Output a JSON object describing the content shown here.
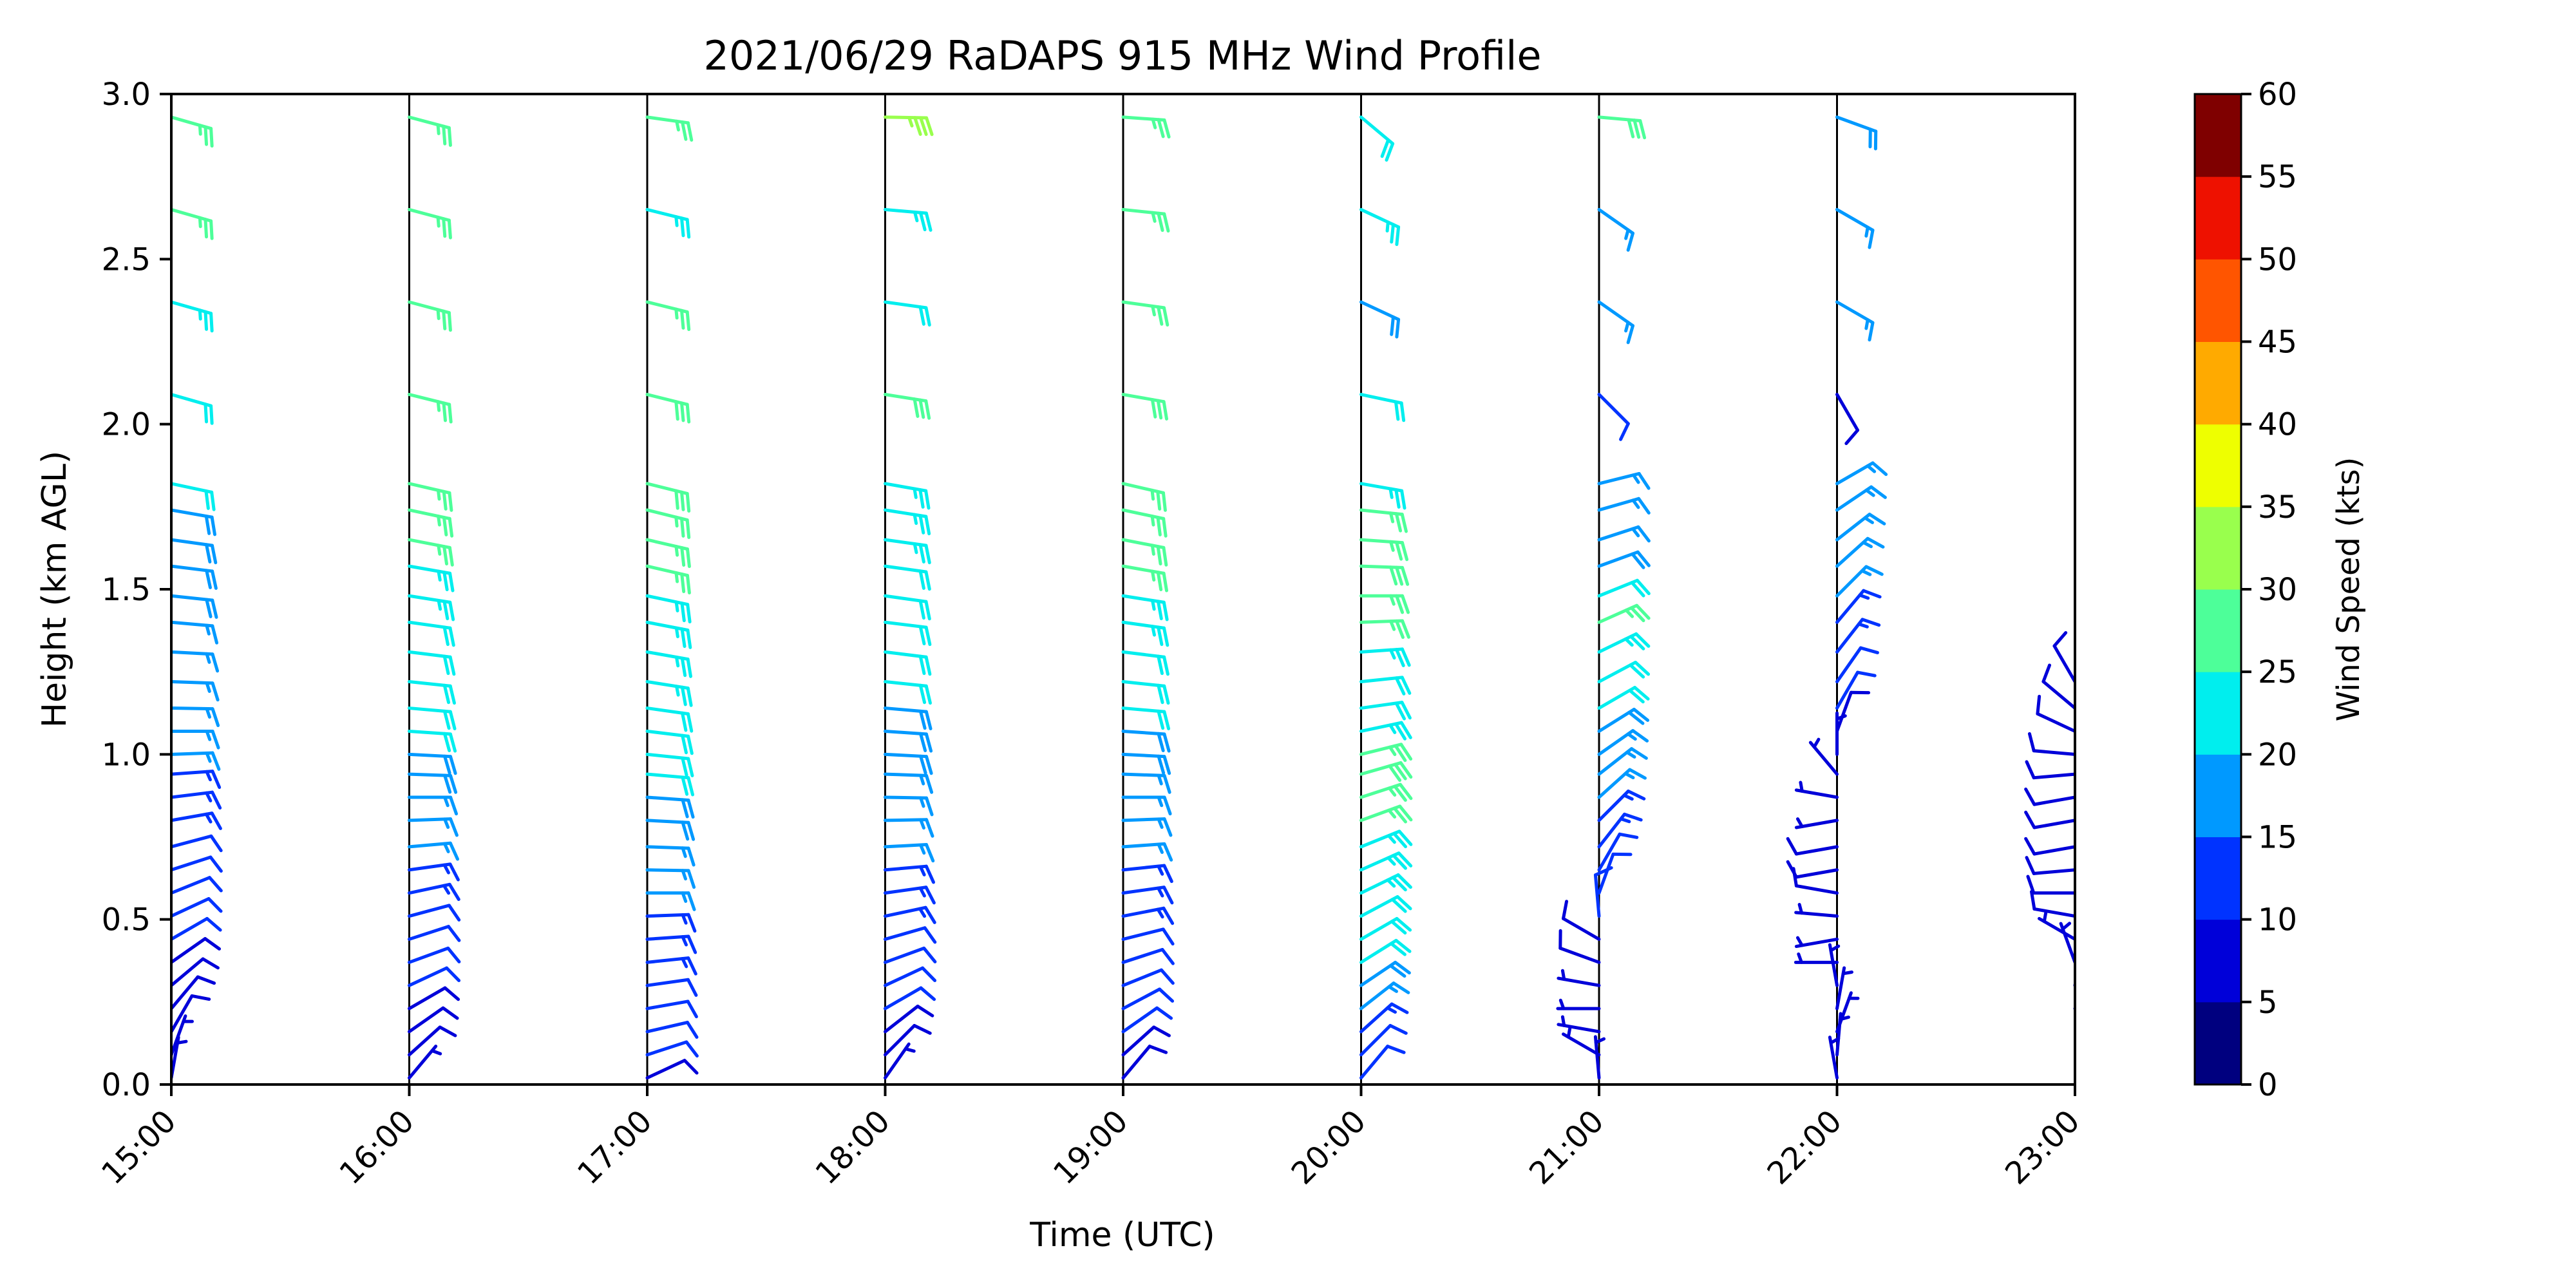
{
  "chart_data": {
    "type": "wind-barb-profile",
    "title": "2021/06/29 RaDAPS 915 MHz Wind Profile",
    "xlabel": "Time (UTC)",
    "ylabel": "Height (km AGL)",
    "x_ticks": [
      "15:00",
      "16:00",
      "17:00",
      "18:00",
      "19:00",
      "20:00",
      "21:00",
      "22:00",
      "23:00"
    ],
    "xlim": [
      15,
      23
    ],
    "y_ticks": [
      "0.0",
      "0.5",
      "1.0",
      "1.5",
      "2.0",
      "2.5",
      "3.0"
    ],
    "ylim": [
      0,
      3
    ],
    "colorbar": {
      "label": "Wind Speed (kts)",
      "ticks": [
        "0",
        "5",
        "10",
        "15",
        "20",
        "25",
        "30",
        "35",
        "40",
        "45",
        "50",
        "55",
        "60"
      ],
      "range": [
        0,
        60
      ],
      "colors": [
        "#00007f",
        "#0000d9",
        "#0033ff",
        "#0099ff",
        "#00eeee",
        "#4dff99",
        "#99ff4d",
        "#eeff00",
        "#ffaa00",
        "#ff5500",
        "#ee1100",
        "#7f0000"
      ]
    },
    "profiles": [
      {
        "time": "15:00",
        "heights": [
          0.02,
          0.09,
          0.16,
          0.23,
          0.3,
          0.37,
          0.44,
          0.51,
          0.58,
          0.65,
          0.72,
          0.8,
          0.87,
          0.94,
          1.0,
          1.07,
          1.14,
          1.22,
          1.31,
          1.4,
          1.48,
          1.57,
          1.65,
          1.74,
          1.82,
          2.09,
          2.37,
          2.65,
          2.93
        ],
        "speed_kts": [
          6,
          7,
          8,
          8,
          9,
          9,
          10,
          10,
          11,
          12,
          12,
          13,
          14,
          14,
          15,
          15,
          16,
          16,
          17,
          17,
          18,
          18,
          19,
          19,
          20,
          22,
          24,
          25,
          25
        ],
        "direction_deg": [
          190,
          200,
          210,
          220,
          230,
          235,
          240,
          245,
          248,
          252,
          255,
          260,
          263,
          266,
          268,
          270,
          271,
          272,
          273,
          275,
          276,
          277,
          278,
          280,
          282,
          286,
          286,
          286,
          286
        ]
      },
      {
        "time": "16:00",
        "heights": [
          0.02,
          0.09,
          0.16,
          0.23,
          0.3,
          0.37,
          0.44,
          0.51,
          0.58,
          0.65,
          0.72,
          0.8,
          0.87,
          0.94,
          1.0,
          1.07,
          1.14,
          1.22,
          1.31,
          1.4,
          1.48,
          1.57,
          1.65,
          1.74,
          1.82,
          2.09,
          2.37,
          2.65,
          2.93
        ],
        "speed_kts": [
          7,
          8,
          9,
          9,
          10,
          11,
          11,
          12,
          13,
          14,
          15,
          16,
          17,
          18,
          19,
          20,
          21,
          21,
          22,
          22,
          23,
          24,
          25,
          26,
          27,
          27,
          27,
          27,
          26
        ],
        "direction_deg": [
          220,
          228,
          235,
          240,
          245,
          250,
          252,
          255,
          258,
          262,
          265,
          268,
          270,
          272,
          273,
          274,
          275,
          276,
          277,
          278,
          279,
          280,
          281,
          282,
          283,
          284,
          285,
          285,
          285
        ]
      },
      {
        "time": "17:00",
        "heights": [
          0.02,
          0.09,
          0.16,
          0.23,
          0.3,
          0.37,
          0.44,
          0.51,
          0.58,
          0.65,
          0.72,
          0.8,
          0.87,
          0.94,
          1.0,
          1.07,
          1.14,
          1.22,
          1.31,
          1.4,
          1.48,
          1.57,
          1.65,
          1.74,
          1.82,
          2.09,
          2.37,
          2.65,
          2.93
        ],
        "speed_kts": [
          9,
          10,
          11,
          11,
          12,
          13,
          13,
          14,
          15,
          16,
          17,
          18,
          19,
          20,
          21,
          22,
          22,
          23,
          23,
          24,
          24,
          25,
          26,
          27,
          28,
          28,
          27,
          24,
          26
        ],
        "direction_deg": [
          245,
          252,
          257,
          260,
          262,
          264,
          266,
          268,
          270,
          271,
          272,
          273,
          274,
          275,
          276,
          277,
          278,
          279,
          280,
          281,
          282,
          283,
          283,
          284,
          284,
          284,
          284,
          284,
          278
        ]
      },
      {
        "time": "18:00",
        "heights": [
          0.02,
          0.09,
          0.16,
          0.23,
          0.3,
          0.37,
          0.44,
          0.51,
          0.58,
          0.65,
          0.72,
          0.8,
          0.87,
          0.94,
          1.0,
          1.07,
          1.14,
          1.22,
          1.31,
          1.4,
          1.48,
          1.57,
          1.65,
          1.74,
          1.82,
          2.09,
          2.37,
          2.65,
          2.93
        ],
        "speed_kts": [
          7,
          8,
          9,
          10,
          11,
          11,
          12,
          13,
          14,
          14,
          15,
          16,
          17,
          17,
          18,
          19,
          19,
          20,
          21,
          21,
          22,
          22,
          23,
          23,
          24,
          28,
          22,
          23,
          33
        ],
        "direction_deg": [
          215,
          225,
          232,
          240,
          245,
          250,
          254,
          258,
          262,
          265,
          267,
          269,
          271,
          272,
          273,
          274,
          275,
          276,
          277,
          277,
          278,
          278,
          278,
          279,
          280,
          279,
          278,
          275,
          271
        ]
      },
      {
        "time": "19:00",
        "heights": [
          0.02,
          0.09,
          0.16,
          0.23,
          0.3,
          0.37,
          0.44,
          0.51,
          0.58,
          0.65,
          0.72,
          0.8,
          0.87,
          0.94,
          1.0,
          1.07,
          1.14,
          1.22,
          1.31,
          1.4,
          1.48,
          1.57,
          1.65,
          1.74,
          1.82,
          2.09,
          2.37,
          2.65,
          2.93
        ],
        "speed_kts": [
          8,
          9,
          10,
          10,
          11,
          12,
          12,
          13,
          14,
          14,
          15,
          15,
          16,
          17,
          18,
          19,
          20,
          21,
          22,
          23,
          24,
          25,
          26,
          27,
          27,
          28,
          27,
          27,
          27
        ],
        "direction_deg": [
          220,
          228,
          235,
          242,
          248,
          252,
          256,
          259,
          262,
          264,
          266,
          268,
          270,
          272,
          273,
          274,
          275,
          276,
          277,
          278,
          279,
          280,
          281,
          282,
          283,
          280,
          278,
          276,
          274
        ]
      },
      {
        "time": "20:00",
        "heights": [
          0.02,
          0.09,
          0.16,
          0.23,
          0.3,
          0.37,
          0.44,
          0.51,
          0.58,
          0.65,
          0.72,
          0.8,
          0.87,
          0.94,
          1.0,
          1.07,
          1.14,
          1.22,
          1.31,
          1.4,
          1.48,
          1.57,
          1.65,
          1.74,
          1.82,
          2.09,
          2.37,
          2.65,
          2.93
        ],
        "speed_kts": [
          10,
          12,
          14,
          16,
          18,
          20,
          22,
          22,
          23,
          24,
          24,
          25,
          27,
          28,
          26,
          24,
          20,
          22,
          24,
          25,
          26,
          28,
          27,
          25,
          24,
          22,
          19,
          24,
          20
        ],
        "direction_deg": [
          220,
          225,
          228,
          232,
          236,
          238,
          240,
          242,
          244,
          246,
          248,
          250,
          252,
          254,
          256,
          258,
          262,
          264,
          266,
          268,
          270,
          272,
          274,
          276,
          280,
          282,
          295,
          295,
          310
        ]
      },
      {
        "time": "21:00",
        "heights": [
          0.02,
          0.09,
          0.16,
          0.23,
          0.3,
          0.37,
          0.44,
          0.51,
          0.58,
          0.65,
          0.72,
          0.8,
          0.87,
          0.94,
          1.0,
          1.07,
          1.14,
          1.22,
          1.31,
          1.4,
          1.48,
          1.57,
          1.65,
          1.74,
          1.82,
          2.09,
          2.37,
          2.65,
          2.93
        ],
        "speed_kts": [
          6,
          5,
          5,
          6,
          7,
          8,
          9,
          10,
          11,
          12,
          13,
          14,
          15,
          16,
          17,
          19,
          20,
          22,
          24,
          26,
          20,
          18,
          17,
          16,
          16,
          12,
          16,
          16,
          28
        ],
        "direction_deg": [
          175,
          120,
          100,
          90,
          100,
          110,
          120,
          175,
          200,
          210,
          218,
          225,
          228,
          232,
          235,
          238,
          240,
          242,
          244,
          246,
          248,
          250,
          252,
          254,
          256,
          315,
          305,
          305,
          275
        ]
      },
      {
        "time": "22:00",
        "heights": [
          0.02,
          0.09,
          0.16,
          0.23,
          0.3,
          0.37,
          0.44,
          0.51,
          0.58,
          0.65,
          0.72,
          0.8,
          0.87,
          0.94,
          1.0,
          1.07,
          1.14,
          1.22,
          1.31,
          1.4,
          1.48,
          1.57,
          1.65,
          1.74,
          1.82,
          2.09,
          2.37,
          2.65,
          2.93
        ],
        "speed_kts": [
          5,
          5,
          5,
          6,
          6,
          6,
          7,
          7,
          8,
          8,
          8,
          7,
          7,
          6,
          7,
          8,
          10,
          12,
          13,
          14,
          15,
          15,
          16,
          16,
          16,
          9,
          17,
          17,
          19
        ],
        "direction_deg": [
          170,
          185,
          200,
          190,
          170,
          90,
          80,
          95,
          100,
          80,
          80,
          80,
          100,
          140,
          180,
          200,
          210,
          215,
          218,
          220,
          225,
          228,
          232,
          236,
          240,
          330,
          300,
          300,
          290
        ]
      },
      {
        "time": "23:00",
        "heights": [
          0.23,
          0.3,
          0.37,
          0.44,
          0.51,
          0.58,
          0.65,
          0.72,
          0.8,
          0.87,
          0.94,
          1.0,
          1.07,
          1.14,
          1.22
        ],
        "speed_kts": [
          7,
          7,
          7,
          7,
          8,
          8,
          8,
          9,
          9,
          9,
          9,
          8,
          8,
          8,
          8
        ],
        "direction_deg": [
          210,
          190,
          160,
          120,
          100,
          90,
          85,
          80,
          80,
          80,
          85,
          95,
          115,
          130,
          150
        ]
      }
    ]
  }
}
